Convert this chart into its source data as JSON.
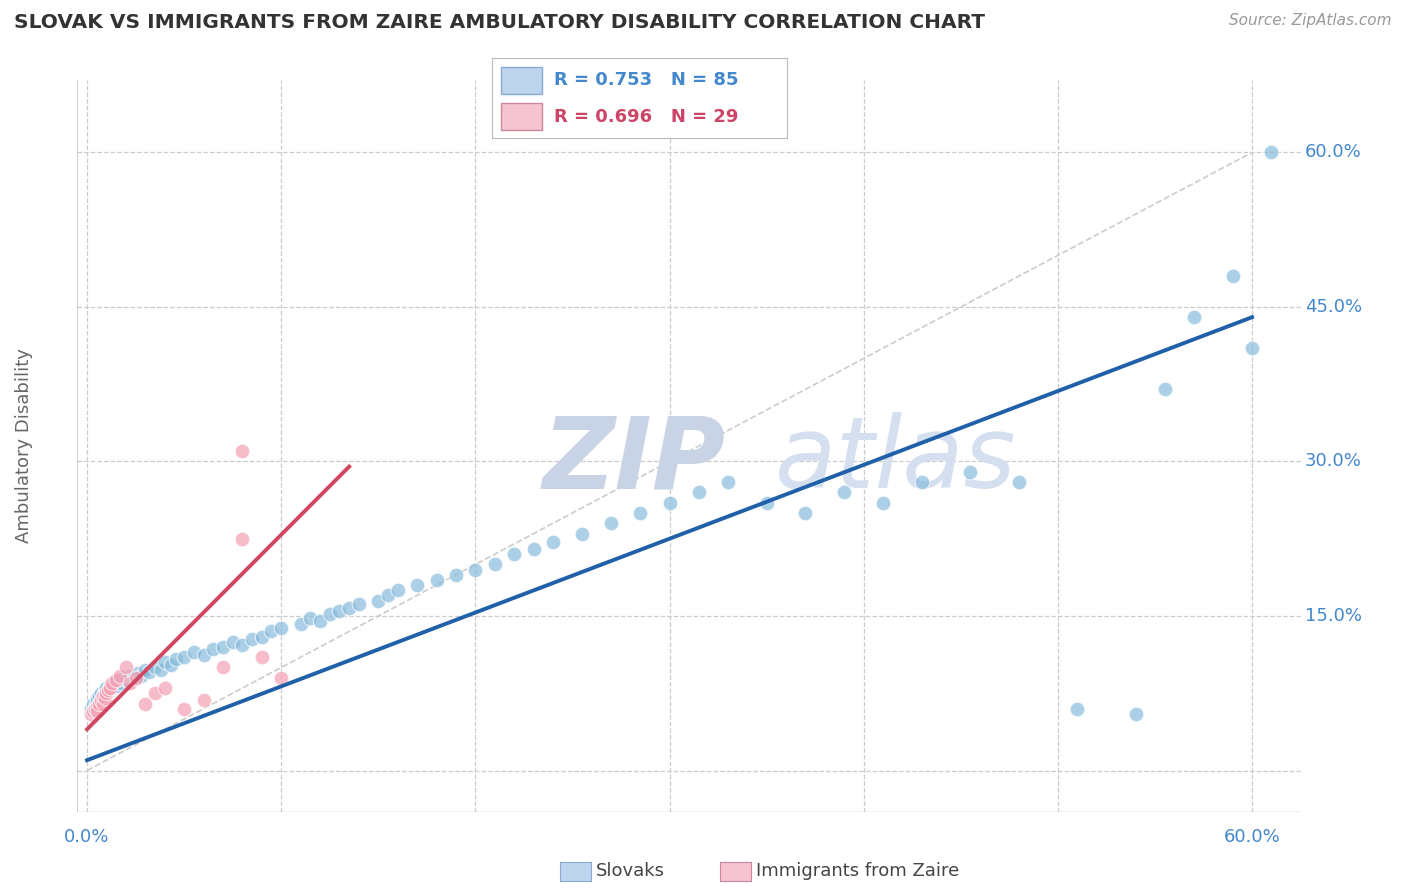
{
  "title": "SLOVAK VS IMMIGRANTS FROM ZAIRE AMBULATORY DISABILITY CORRELATION CHART",
  "source": "Source: ZipAtlas.com",
  "ylabel": "Ambulatory Disability",
  "y_ticks": [
    0.0,
    0.15,
    0.3,
    0.45,
    0.6
  ],
  "y_tick_labels": [
    "",
    "15.0%",
    "30.0%",
    "45.0%",
    "60.0%"
  ],
  "x_ticks": [
    0.0,
    0.1,
    0.2,
    0.3,
    0.4,
    0.5,
    0.6
  ],
  "xlim": [
    -0.005,
    0.625
  ],
  "ylim": [
    -0.04,
    0.67
  ],
  "legend_r1": "R = 0.753   N = 85",
  "legend_r2": "R = 0.696   N = 29",
  "legend_label1": "Slovaks",
  "legend_label2": "Immigrants from Zaire",
  "scatter_blue": "#88bbdd",
  "scatter_pink": "#f4a0b4",
  "line_blue": "#2060a8",
  "line_pink": "#d04860",
  "legend_blue_bg": "#bdd5ec",
  "legend_pink_bg": "#f5c4d0",
  "diagonal_color": "#cccccc",
  "title_color": "#333333",
  "axis_color": "#4488cc",
  "grid_color": "#cccccc",
  "watermark_color": "#cdd8ea",
  "source_color": "#999999",
  "slovak_line_x0": 0.0,
  "slovak_line_y0": 0.01,
  "slovak_line_x1": 0.6,
  "slovak_line_y1": 0.44,
  "zaire_line_x0": 0.0,
  "zaire_line_y0": 0.04,
  "zaire_line_x1": 0.135,
  "zaire_line_y1": 0.295,
  "sk_x": [
    0.002,
    0.003,
    0.004,
    0.005,
    0.005,
    0.006,
    0.006,
    0.007,
    0.007,
    0.008,
    0.008,
    0.009,
    0.009,
    0.01,
    0.01,
    0.011,
    0.012,
    0.012,
    0.013,
    0.014,
    0.015,
    0.016,
    0.017,
    0.018,
    0.02,
    0.022,
    0.024,
    0.026,
    0.028,
    0.03,
    0.032,
    0.035,
    0.038,
    0.04,
    0.043,
    0.046,
    0.05,
    0.055,
    0.06,
    0.065,
    0.07,
    0.075,
    0.08,
    0.085,
    0.09,
    0.095,
    0.1,
    0.11,
    0.115,
    0.12,
    0.125,
    0.13,
    0.135,
    0.14,
    0.15,
    0.155,
    0.16,
    0.17,
    0.18,
    0.19,
    0.2,
    0.21,
    0.22,
    0.23,
    0.24,
    0.255,
    0.27,
    0.285,
    0.3,
    0.315,
    0.33,
    0.35,
    0.37,
    0.39,
    0.41,
    0.43,
    0.455,
    0.48,
    0.51,
    0.54,
    0.555,
    0.57,
    0.59,
    0.6,
    0.61
  ],
  "sk_y": [
    0.06,
    0.065,
    0.062,
    0.07,
    0.068,
    0.065,
    0.072,
    0.068,
    0.075,
    0.07,
    0.073,
    0.072,
    0.078,
    0.074,
    0.08,
    0.076,
    0.078,
    0.082,
    0.08,
    0.085,
    0.082,
    0.088,
    0.085,
    0.09,
    0.088,
    0.092,
    0.09,
    0.095,
    0.092,
    0.098,
    0.096,
    0.1,
    0.098,
    0.105,
    0.102,
    0.108,
    0.11,
    0.115,
    0.112,
    0.118,
    0.12,
    0.125,
    0.122,
    0.128,
    0.13,
    0.135,
    0.138,
    0.142,
    0.148,
    0.145,
    0.152,
    0.155,
    0.158,
    0.162,
    0.165,
    0.17,
    0.175,
    0.18,
    0.185,
    0.19,
    0.195,
    0.2,
    0.21,
    0.215,
    0.222,
    0.23,
    0.24,
    0.25,
    0.26,
    0.27,
    0.28,
    0.26,
    0.25,
    0.27,
    0.26,
    0.28,
    0.29,
    0.28,
    0.06,
    0.055,
    0.37,
    0.44,
    0.48,
    0.41,
    0.6
  ],
  "zr_x": [
    0.002,
    0.003,
    0.004,
    0.005,
    0.005,
    0.006,
    0.007,
    0.008,
    0.008,
    0.009,
    0.01,
    0.011,
    0.012,
    0.013,
    0.015,
    0.017,
    0.02,
    0.022,
    0.025,
    0.03,
    0.035,
    0.04,
    0.05,
    0.06,
    0.07,
    0.08,
    0.09,
    0.1,
    0.08
  ],
  "zr_y": [
    0.055,
    0.058,
    0.06,
    0.062,
    0.058,
    0.065,
    0.068,
    0.065,
    0.072,
    0.07,
    0.075,
    0.078,
    0.08,
    0.085,
    0.088,
    0.092,
    0.1,
    0.085,
    0.09,
    0.065,
    0.075,
    0.08,
    0.06,
    0.068,
    0.1,
    0.31,
    0.11,
    0.09,
    0.225
  ]
}
